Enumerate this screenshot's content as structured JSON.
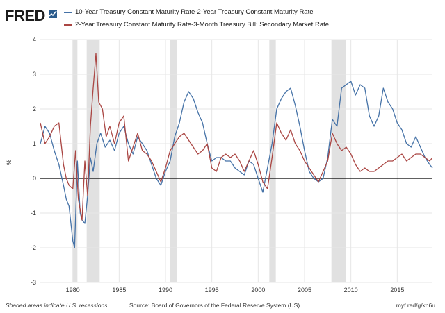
{
  "brand": {
    "name": "FRED",
    "mark_icon": "fred-chart-icon"
  },
  "footer": {
    "recession_note": "Shaded areas indicate U.S. recessions",
    "source": "Source: Board of Governors of the Federal Reserve System (US)",
    "link": "myf.red/g/kn6u"
  },
  "chart_data": {
    "type": "line",
    "ylabel": "%",
    "ylim": [
      -3,
      4
    ],
    "xlim": [
      1976.5,
      2018.8
    ],
    "grid": true,
    "legend_position": "top",
    "y_ticks": [
      "-3",
      "-2",
      "-1",
      "0",
      "1",
      "2",
      "3",
      "4"
    ],
    "y_tick_values": [
      -3,
      -2,
      -1,
      0,
      1,
      2,
      3,
      4
    ],
    "x_ticks": [
      "1980",
      "1985",
      "1990",
      "1995",
      "2000",
      "2005",
      "2010",
      "2015"
    ],
    "x_tick_values": [
      1980,
      1985,
      1990,
      1995,
      2000,
      2005,
      2010,
      2015
    ],
    "recessions": [
      [
        1980.0,
        1980.5
      ],
      [
        1981.5,
        1982.9
      ],
      [
        1990.5,
        1991.2
      ],
      [
        2001.2,
        2001.9
      ],
      [
        2007.9,
        2009.5
      ]
    ],
    "colors": {
      "recession": "#e1e1e1",
      "grid": "#e6e6e6",
      "zero_line": "#000000"
    },
    "series": [
      {
        "name": "10-Year Treasury Constant Maturity Rate-2-Year Treasury Constant Maturity Rate",
        "color": "#4572a7",
        "x": [
          1976.5,
          1977,
          1977.5,
          1978,
          1978.5,
          1979,
          1979.3,
          1979.6,
          1980,
          1980.2,
          1980.5,
          1980.8,
          1981,
          1981.3,
          1981.6,
          1981.9,
          1982.2,
          1982.6,
          1983,
          1983.5,
          1984,
          1984.5,
          1985,
          1985.5,
          1986,
          1986.5,
          1987,
          1987.5,
          1988,
          1988.5,
          1989,
          1989.5,
          1990,
          1990.5,
          1991,
          1991.5,
          1992,
          1992.5,
          1993,
          1993.5,
          1994,
          1994.5,
          1995,
          1995.5,
          1996,
          1996.5,
          1997,
          1997.5,
          1998,
          1998.5,
          1999,
          1999.5,
          2000,
          2000.5,
          2001,
          2001.5,
          2002,
          2002.5,
          2003,
          2003.5,
          2004,
          2004.5,
          2005,
          2005.5,
          2006,
          2006.5,
          2007,
          2007.5,
          2008,
          2008.5,
          2009,
          2009.5,
          2010,
          2010.5,
          2011,
          2011.5,
          2012,
          2012.5,
          2013,
          2013.5,
          2014,
          2014.5,
          2015,
          2015.5,
          2016,
          2016.5,
          2017,
          2017.5,
          2018,
          2018.5,
          2018.8
        ],
        "y": [
          1.0,
          1.5,
          1.3,
          0.8,
          0.4,
          -0.2,
          -0.6,
          -0.8,
          -1.8,
          -2.0,
          0.5,
          -1.0,
          -1.2,
          -1.3,
          -0.5,
          0.6,
          0.2,
          1.0,
          1.3,
          0.9,
          1.1,
          0.8,
          1.3,
          1.5,
          1.0,
          0.7,
          1.2,
          1.0,
          0.8,
          0.4,
          0.0,
          -0.2,
          0.2,
          0.5,
          1.2,
          1.6,
          2.2,
          2.5,
          2.3,
          1.9,
          1.6,
          1.0,
          0.5,
          0.6,
          0.6,
          0.5,
          0.5,
          0.3,
          0.2,
          0.1,
          0.5,
          0.4,
          0.0,
          -0.4,
          0.3,
          1.0,
          2.0,
          2.3,
          2.5,
          2.6,
          2.1,
          1.5,
          0.8,
          0.2,
          0.0,
          -0.1,
          0.0,
          0.6,
          1.7,
          1.5,
          2.6,
          2.7,
          2.8,
          2.4,
          2.7,
          2.6,
          1.8,
          1.5,
          1.8,
          2.6,
          2.2,
          2.0,
          1.6,
          1.4,
          1.0,
          0.9,
          1.2,
          0.9,
          0.6,
          0.4,
          0.3
        ]
      },
      {
        "name": "2-Year Treasury Constant Maturity Rate-3-Month Treasury Bill: Secondary Market Rate",
        "color": "#aa4643",
        "x": [
          1976.5,
          1977,
          1977.5,
          1978,
          1978.5,
          1979,
          1979.3,
          1979.6,
          1980,
          1980.3,
          1980.6,
          1981,
          1981.3,
          1981.6,
          1981.9,
          1982.2,
          1982.5,
          1982.8,
          1983.2,
          1983.6,
          1984,
          1984.5,
          1985,
          1985.5,
          1986,
          1986.5,
          1987,
          1987.5,
          1988,
          1988.5,
          1989,
          1989.5,
          1990,
          1990.5,
          1991,
          1991.5,
          1992,
          1992.5,
          1993,
          1993.5,
          1994,
          1994.5,
          1995,
          1995.5,
          1996,
          1996.5,
          1997,
          1997.5,
          1998,
          1998.5,
          1999,
          1999.5,
          2000,
          2000.5,
          2001,
          2001.5,
          2002,
          2002.5,
          2003,
          2003.5,
          2004,
          2004.5,
          2005,
          2005.5,
          2006,
          2006.5,
          2007,
          2007.5,
          2008,
          2008.5,
          2009,
          2009.5,
          2010,
          2010.5,
          2011,
          2011.5,
          2012,
          2012.5,
          2013,
          2013.5,
          2014,
          2014.5,
          2015,
          2015.5,
          2016,
          2016.5,
          2017,
          2017.5,
          2018,
          2018.5,
          2018.8
        ],
        "y": [
          1.6,
          1.0,
          1.2,
          1.5,
          1.6,
          0.4,
          0.0,
          -0.2,
          -0.3,
          0.8,
          -0.6,
          -1.2,
          0.5,
          -0.5,
          1.5,
          2.6,
          3.6,
          2.2,
          2.0,
          1.2,
          1.5,
          1.0,
          1.6,
          1.8,
          0.5,
          0.9,
          1.3,
          0.8,
          0.7,
          0.5,
          0.2,
          -0.1,
          0.3,
          0.8,
          1.0,
          1.2,
          1.3,
          1.1,
          0.9,
          0.7,
          0.8,
          1.0,
          0.3,
          0.2,
          0.6,
          0.7,
          0.6,
          0.7,
          0.5,
          0.2,
          0.5,
          0.8,
          0.4,
          -0.1,
          -0.3,
          0.6,
          1.6,
          1.3,
          1.1,
          1.4,
          1.0,
          0.8,
          0.5,
          0.3,
          0.1,
          -0.1,
          0.2,
          0.5,
          1.3,
          1.0,
          0.8,
          0.9,
          0.7,
          0.4,
          0.2,
          0.3,
          0.2,
          0.2,
          0.3,
          0.4,
          0.5,
          0.5,
          0.6,
          0.7,
          0.5,
          0.6,
          0.7,
          0.7,
          0.6,
          0.5,
          0.6
        ]
      }
    ]
  }
}
